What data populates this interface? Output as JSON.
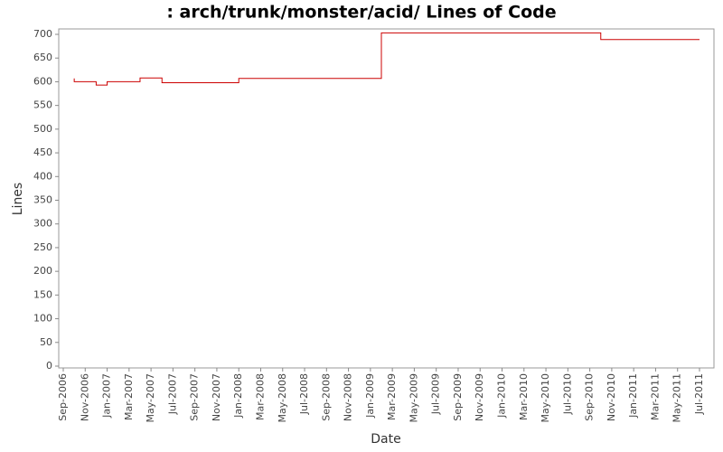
{
  "chart_data": {
    "type": "step-line",
    "title": ": arch/trunk/monster/acid/ Lines of Code",
    "x_label": "Date",
    "y_label": "Lines",
    "color": "#cc0000",
    "grid": false,
    "x": [
      "2006-10",
      "2006-10",
      "2006-12",
      "2007-01",
      "2007-04",
      "2007-06",
      "2008-01",
      "2009-02",
      "2009-02",
      "2010-10",
      "2011-07"
    ],
    "values": [
      607,
      600,
      593,
      600,
      608,
      598,
      607,
      612,
      703,
      689,
      689
    ],
    "xlim": [
      "2006-09",
      "2011-07"
    ],
    "xticks": [
      {
        "value": "2006-09",
        "label": "Sep-2006"
      },
      {
        "value": "2006-11",
        "label": "Nov-2006"
      },
      {
        "value": "2007-01",
        "label": "Jan-2007"
      },
      {
        "value": "2007-03",
        "label": "Mar-2007"
      },
      {
        "value": "2007-05",
        "label": "May-2007"
      },
      {
        "value": "2007-07",
        "label": "Jul-2007"
      },
      {
        "value": "2007-09",
        "label": "Sep-2007"
      },
      {
        "value": "2007-11",
        "label": "Nov-2007"
      },
      {
        "value": "2008-01",
        "label": "Jan-2008"
      },
      {
        "value": "2008-03",
        "label": "Mar-2008"
      },
      {
        "value": "2008-05",
        "label": "May-2008"
      },
      {
        "value": "2008-07",
        "label": "Jul-2008"
      },
      {
        "value": "2008-09",
        "label": "Sep-2008"
      },
      {
        "value": "2008-11",
        "label": "Nov-2008"
      },
      {
        "value": "2009-01",
        "label": "Jan-2009"
      },
      {
        "value": "2009-03",
        "label": "Mar-2009"
      },
      {
        "value": "2009-05",
        "label": "May-2009"
      },
      {
        "value": "2009-07",
        "label": "Jul-2009"
      },
      {
        "value": "2009-09",
        "label": "Sep-2009"
      },
      {
        "value": "2009-11",
        "label": "Nov-2009"
      },
      {
        "value": "2010-01",
        "label": "Jan-2010"
      },
      {
        "value": "2010-03",
        "label": "Mar-2010"
      },
      {
        "value": "2010-05",
        "label": "May-2010"
      },
      {
        "value": "2010-07",
        "label": "Jul-2010"
      },
      {
        "value": "2010-09",
        "label": "Sep-2010"
      },
      {
        "value": "2010-11",
        "label": "Nov-2010"
      },
      {
        "value": "2011-01",
        "label": "Jan-2011"
      },
      {
        "value": "2011-03",
        "label": "Mar-2011"
      },
      {
        "value": "2011-05",
        "label": "May-2011"
      },
      {
        "value": "2011-07",
        "label": "Jul-2011"
      }
    ],
    "ylim": [
      0,
      700
    ],
    "yticks": [
      0,
      50,
      100,
      150,
      200,
      250,
      300,
      350,
      400,
      450,
      500,
      550,
      600,
      650,
      700
    ]
  }
}
